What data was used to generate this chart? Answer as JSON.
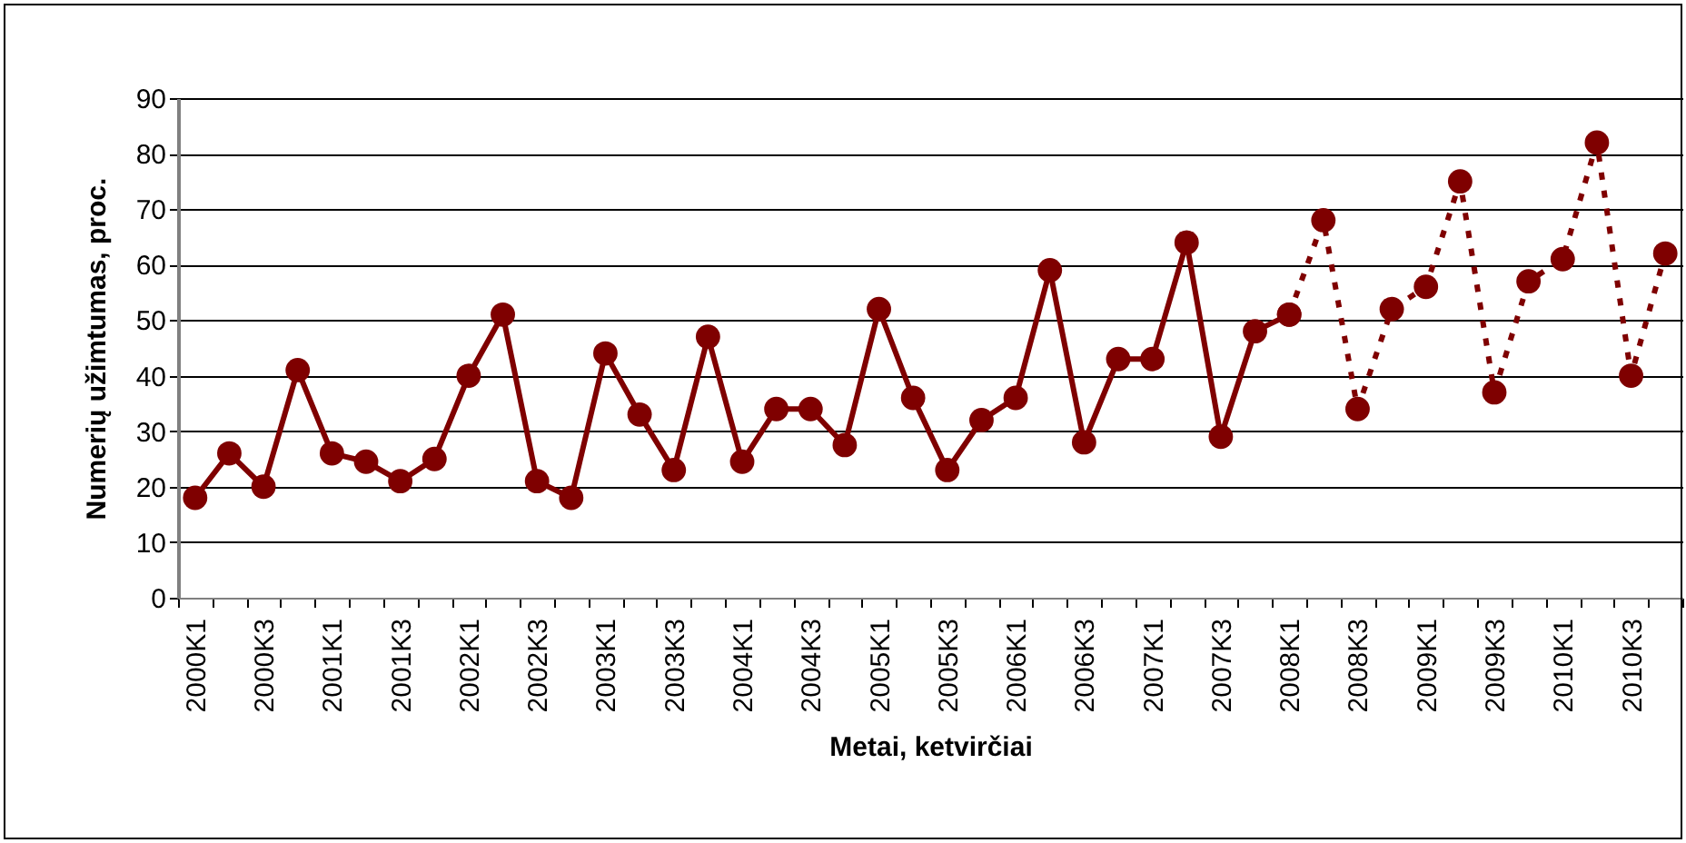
{
  "chart_data": {
    "type": "line",
    "xlabel": "Metai, ketvirčiai",
    "ylabel": "Numerių užimtumas, proc.",
    "categories": [
      "2000K1",
      null,
      "2000K3",
      null,
      "2001K1",
      null,
      "2001K3",
      null,
      "2002K1",
      null,
      "2002K3",
      null,
      "2003K1",
      null,
      "2003K3",
      null,
      "2004K1",
      null,
      "2004K3",
      null,
      "2005K1",
      null,
      "2005K3",
      null,
      "2006K1",
      null,
      "2006K3",
      null,
      "2007K1",
      null,
      "2007K3",
      null,
      "2008K1",
      null,
      "2008K3",
      null,
      "2009K1",
      null,
      "2009K3",
      null,
      "2010K1",
      null,
      "2010K3",
      null
    ],
    "series": [
      {
        "color": "#7f0000",
        "line_style": "solid",
        "values": [
          18,
          26,
          20,
          41,
          26,
          24.5,
          21,
          25,
          40,
          51,
          21,
          18,
          44,
          33,
          23,
          47,
          24.5,
          34,
          34,
          27.5,
          52,
          36,
          23,
          32,
          36,
          59,
          28,
          43,
          43,
          64,
          29,
          48,
          51,
          null,
          null,
          null,
          null,
          null,
          null,
          null,
          null,
          null,
          null,
          null
        ]
      },
      {
        "color": "#7f0000",
        "line_style": "dotted",
        "values": [
          null,
          null,
          null,
          null,
          null,
          null,
          null,
          null,
          null,
          null,
          null,
          null,
          null,
          null,
          null,
          null,
          null,
          null,
          null,
          null,
          null,
          null,
          null,
          null,
          null,
          null,
          null,
          null,
          null,
          null,
          null,
          null,
          51,
          68,
          34,
          52,
          56,
          75,
          37,
          57,
          61,
          82,
          40,
          62
        ]
      }
    ],
    "ylim": [
      0,
      90
    ],
    "yticks": [
      0,
      10,
      20,
      30,
      40,
      50,
      60,
      70,
      80,
      90
    ],
    "grid": "y",
    "marker": "circle"
  }
}
